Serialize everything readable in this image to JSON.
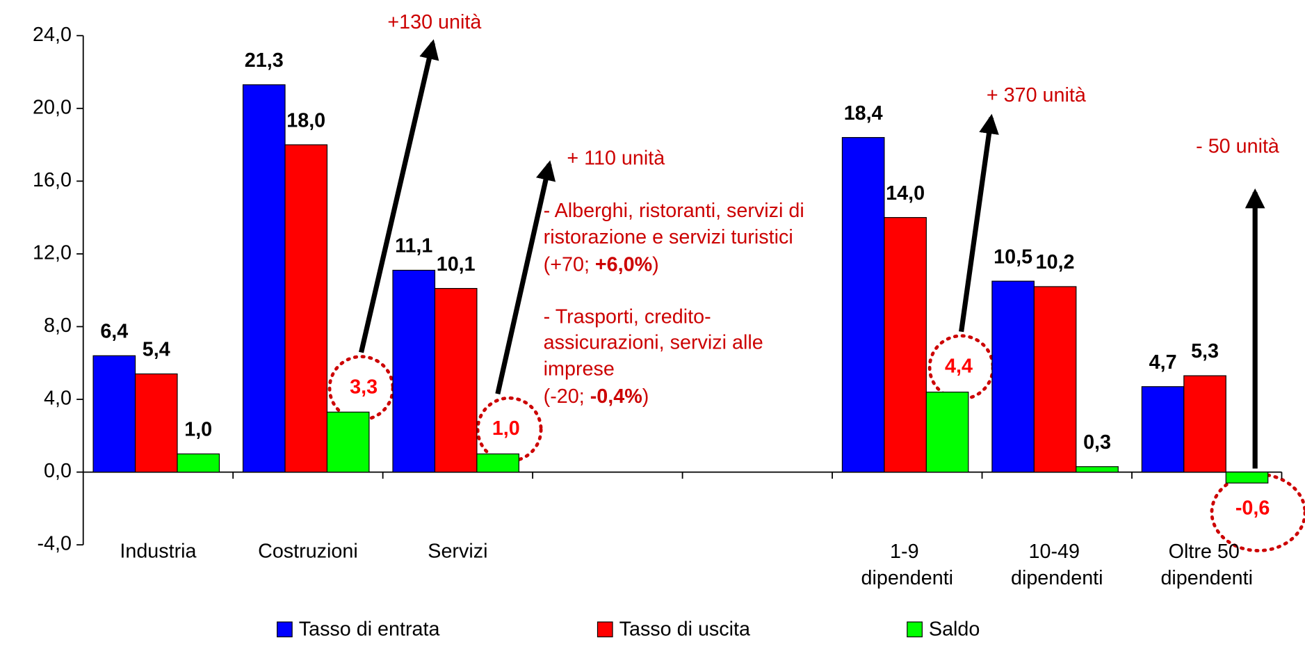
{
  "chart_data": {
    "type": "bar",
    "categories": [
      "Industria",
      "Costruzioni",
      "Servizi",
      null,
      null,
      "1-9 dipendenti",
      "10-49 dipendenti",
      "Oltre 50 dipendenti"
    ],
    "series": [
      {
        "name": "Tasso di entrata",
        "color": "#0000ff",
        "values": [
          6.4,
          21.3,
          11.1,
          null,
          null,
          18.4,
          10.5,
          4.7
        ],
        "value_labels": [
          "6,4",
          "21,3",
          "11,1",
          null,
          null,
          "18,4",
          "10,5",
          "4,7"
        ]
      },
      {
        "name": "Tasso di uscita",
        "color": "#ff0000",
        "values": [
          5.4,
          18.0,
          10.1,
          null,
          null,
          14.0,
          10.2,
          5.3
        ],
        "value_labels": [
          "5,4",
          "18,0",
          "10,1",
          null,
          null,
          "14,0",
          "10,2",
          "5,3"
        ]
      },
      {
        "name": "Saldo",
        "color": "#00ff00",
        "values": [
          1.0,
          3.3,
          1.0,
          null,
          null,
          4.4,
          0.3,
          -0.6
        ],
        "value_labels": [
          "1,0",
          "3,3",
          "1,0",
          null,
          null,
          "4,4",
          "0,3",
          "-0,6"
        ]
      }
    ],
    "ylim": [
      -4,
      24
    ],
    "yticks": [
      {
        "value": -4,
        "label": "-4,0"
      },
      {
        "value": 0,
        "label": "0,0"
      },
      {
        "value": 4,
        "label": "4,0"
      },
      {
        "value": 8,
        "label": "8,0"
      },
      {
        "value": 12,
        "label": "12,0"
      },
      {
        "value": 16,
        "label": "16,0"
      },
      {
        "value": 20,
        "label": "20,0"
      },
      {
        "value": 24,
        "label": "24,0"
      }
    ],
    "annotations": [
      "+130 unità",
      "+ 110 unità",
      "+ 370 unità",
      "- 50 unità"
    ],
    "notes": [
      [
        "- Alberghi, ristoranti, servizi di"
      ],
      [
        "ristorazione e servizi turistici"
      ],
      [
        "(+70; ",
        "+6,0%",
        ")"
      ],
      [
        "- Trasporti, credito-"
      ],
      [
        "assicurazioni, servizi alle"
      ],
      [
        "imprese"
      ],
      [
        " (-20; ",
        "-0,4%",
        ")"
      ]
    ],
    "legend": "bottom"
  }
}
